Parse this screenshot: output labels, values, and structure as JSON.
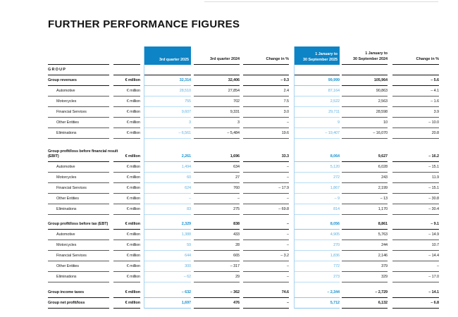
{
  "page": {
    "title": "FURTHER PERFORMANCE FIGURES"
  },
  "colors": {
    "highlight_blue": "#0d84c5",
    "value_blue_bold": "#1d93cf",
    "value_blue": "#5fb0df",
    "rule_light_blue": "#a9d4ee",
    "text": "#1a1a1a"
  },
  "table": {
    "group_header": "GROUP",
    "unit_label": "€ million",
    "columns": [
      {
        "key": "q3_2025",
        "label_lines": [
          "3rd quarter 2025"
        ],
        "highlight": true
      },
      {
        "key": "q3_2024",
        "label_lines": [
          "3rd quarter 2024"
        ],
        "highlight": false
      },
      {
        "key": "change_q",
        "label_lines": [
          "Change in %"
        ],
        "highlight": false
      },
      {
        "key": "ytd_2025",
        "label_lines": [
          "1 January to",
          "30 September 2025"
        ],
        "highlight": true
      },
      {
        "key": "ytd_2024",
        "label_lines": [
          "1 January to",
          "30 September 2024"
        ],
        "highlight": false
      },
      {
        "key": "change_ytd",
        "label_lines": [
          "Change in %"
        ],
        "highlight": false
      }
    ],
    "sections": [
      {
        "rows": [
          {
            "label_lines": [
              "Group revenues"
            ],
            "bold": true,
            "indent": false,
            "values": [
              "32,314",
              "32,406",
              "– 0.3",
              "99,999",
              "105,964",
              "– 5.6"
            ]
          },
          {
            "label_lines": [
              "Automotive"
            ],
            "bold": false,
            "indent": true,
            "values": [
              "28,510",
              "27,854",
              "2.4",
              "87,164",
              "90,863",
              "– 4.1"
            ]
          },
          {
            "label_lines": [
              "Motorcycles"
            ],
            "bold": false,
            "indent": true,
            "values": [
              "755",
              "702",
              "7.5",
              "2,522",
              "2,563",
              "– 1.6"
            ]
          },
          {
            "label_lines": [
              "Financial Services"
            ],
            "bold": false,
            "indent": true,
            "values": [
              "9,607",
              "9,331",
              "3.0",
              "29,711",
              "28,598",
              "3.9"
            ]
          },
          {
            "label_lines": [
              "Other Entities"
            ],
            "bold": false,
            "indent": true,
            "values": [
              "3",
              "3",
              "–",
              "9",
              "10",
              "– 10.0"
            ]
          },
          {
            "label_lines": [
              "Eliminations"
            ],
            "bold": false,
            "indent": true,
            "values": [
              "– 6,561",
              "– 5,484",
              "19.6",
              "– 19,407",
              "– 16,070",
              "20.8"
            ]
          }
        ]
      },
      {
        "rows": [
          {
            "label_lines": [
              "Group profit/loss before financial result",
              "(EBIT)"
            ],
            "bold": true,
            "indent": false,
            "values": [
              "2,261",
              "1,696",
              "33.3",
              "8,064",
              "9,627",
              "– 16.2"
            ]
          },
          {
            "label_lines": [
              "Automotive"
            ],
            "bold": false,
            "indent": true,
            "values": [
              "1,494",
              "634",
              "–",
              "5,120",
              "6,028",
              "– 15.1"
            ]
          },
          {
            "label_lines": [
              "Motorcycles"
            ],
            "bold": false,
            "indent": true,
            "values": [
              "60",
              "27",
              "–",
              "272",
              "243",
              "11.9"
            ]
          },
          {
            "label_lines": [
              "Financial Services"
            ],
            "bold": false,
            "indent": true,
            "values": [
              "624",
              "760",
              "– 17.9",
              "1,867",
              "2,199",
              "– 15.1"
            ]
          },
          {
            "label_lines": [
              "Other Entities"
            ],
            "bold": false,
            "indent": true,
            "values": [
              "–",
              "–",
              "–",
              "– 9",
              "– 13",
              "– 30.8"
            ]
          },
          {
            "label_lines": [
              "Eliminations"
            ],
            "bold": false,
            "indent": true,
            "values": [
              "83",
              "275",
              "– 69.8",
              "814",
              "1,170",
              "– 30.4"
            ]
          }
        ]
      },
      {
        "rows": [
          {
            "label_lines": [
              "Group profit/loss before tax (EBT)"
            ],
            "bold": true,
            "indent": false,
            "values": [
              "2,329",
              "838",
              "–",
              "8,056",
              "8,861",
              "– 9.1"
            ]
          },
          {
            "label_lines": [
              "Automotive"
            ],
            "bold": false,
            "indent": true,
            "values": [
              "1,388",
              "433",
              "–",
              "4,905",
              "5,763",
              "– 14.9"
            ]
          },
          {
            "label_lines": [
              "Motorcycles"
            ],
            "bold": false,
            "indent": true,
            "values": [
              "59",
              "28",
              "–",
              "270",
              "244",
              "10.7"
            ]
          },
          {
            "label_lines": [
              "Financial Services"
            ],
            "bold": false,
            "indent": true,
            "values": [
              "644",
              "665",
              "– 3.2",
              "1,836",
              "2,146",
              "– 14.4"
            ]
          },
          {
            "label_lines": [
              "Other Entities"
            ],
            "bold": false,
            "indent": true,
            "values": [
              "300",
              "– 317",
              "–",
              "772",
              "379",
              "–"
            ]
          },
          {
            "label_lines": [
              "Eliminations"
            ],
            "bold": false,
            "indent": true,
            "values": [
              "– 62",
              "29",
              "–",
              "273",
              "329",
              "– 17.0"
            ]
          }
        ]
      },
      {
        "rows": [
          {
            "label_lines": [
              "Group income taxes"
            ],
            "bold": true,
            "indent": false,
            "values": [
              "– 632",
              "– 362",
              "74.6",
              "– 2,344",
              "– 2,729",
              "– 14.1"
            ]
          },
          {
            "label_lines": [
              "Group net profit/loss"
            ],
            "bold": true,
            "indent": false,
            "values": [
              "1,697",
              "476",
              "–",
              "5,712",
              "6,132",
              "– 6.8"
            ]
          }
        ]
      }
    ]
  }
}
